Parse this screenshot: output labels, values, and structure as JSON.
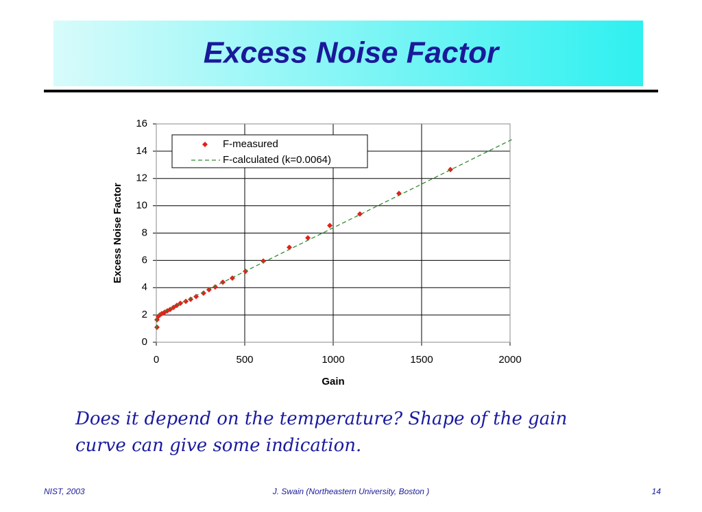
{
  "slide": {
    "title": "Excess Noise Factor",
    "caption": [
      "Does it depend on the temperature? Shape of the gain",
      "curve can give some indication."
    ],
    "footer": {
      "left": "NIST, 2003",
      "center": "J. Swain (Northeastern University, Boston )",
      "right": "14"
    }
  },
  "chart_data": {
    "type": "scatter",
    "x_label": "Gain",
    "y_label": "Excess Noise Factor",
    "xlim": [
      0,
      2000
    ],
    "xticks": [
      0,
      500,
      1000,
      1500,
      2000
    ],
    "ylim": [
      0,
      16
    ],
    "yticks": [
      0,
      2,
      4,
      6,
      8,
      10,
      12,
      14,
      16
    ],
    "grid": true,
    "legend": "upper left",
    "series": [
      {
        "name": "F-measured",
        "color": "#e3201b",
        "mode": "markers",
        "x": [
          4,
          4,
          12,
          20,
          31,
          47,
          62,
          78,
          97,
          116,
          136,
          167,
          194,
          225,
          267,
          298,
          333,
          376,
          430,
          504,
          605,
          752,
          857,
          981,
          1151,
          1372,
          1663
        ],
        "values": [
          1.1,
          1.65,
          1.9,
          2.0,
          2.1,
          2.2,
          2.3,
          2.4,
          2.55,
          2.7,
          2.85,
          3.0,
          3.15,
          3.35,
          3.6,
          3.85,
          4.05,
          4.4,
          4.7,
          5.2,
          5.95,
          6.95,
          7.65,
          8.55,
          9.4,
          10.9,
          12.65
        ]
      },
      {
        "name": "F-calculated (k=0.0064)",
        "color": "#2e8b2e",
        "mode": "dashed-line",
        "x": [
          1,
          2,
          5,
          10,
          20,
          50,
          100,
          200,
          500,
          1000,
          1500,
          2000,
          2020
        ],
        "values": [
          1.0,
          1.503,
          1.82,
          1.952,
          2.066,
          2.287,
          2.617,
          3.262,
          5.185,
          8.386,
          11.587,
          14.787,
          14.915
        ]
      }
    ]
  }
}
